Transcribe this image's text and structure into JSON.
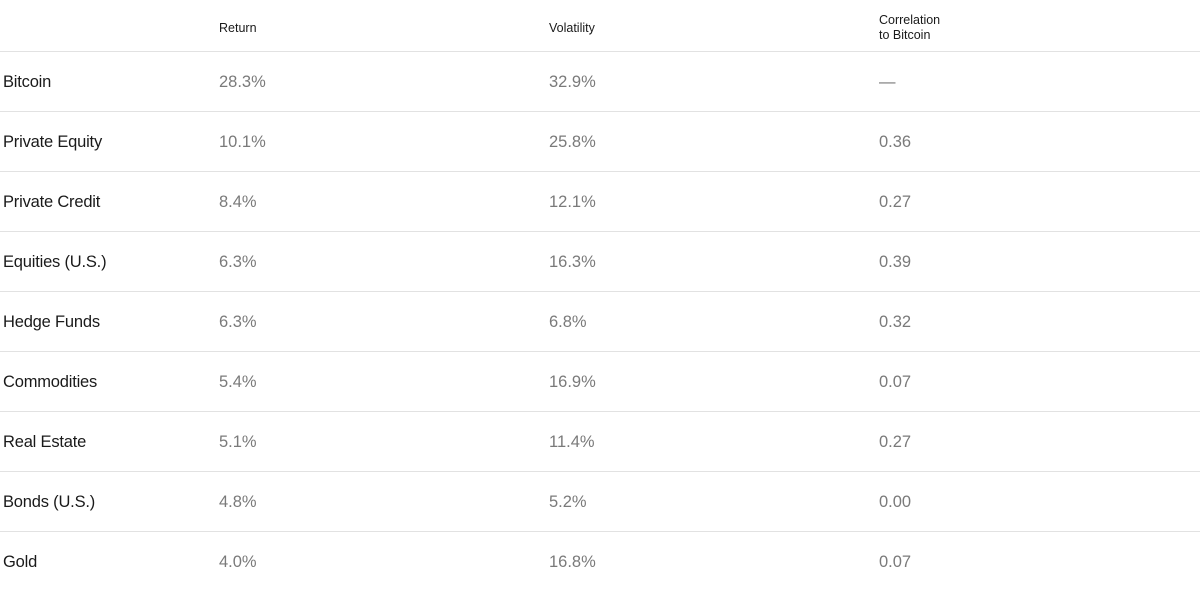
{
  "table": {
    "headers": {
      "return": "Return",
      "volatility": "Volatility",
      "correlation": "Correlation\nto Bitcoin"
    },
    "rows": [
      {
        "asset": "Bitcoin",
        "return": "28.3%",
        "volatility": "32.9%",
        "correlation": "—"
      },
      {
        "asset": "Private Equity",
        "return": "10.1%",
        "volatility": "25.8%",
        "correlation": "0.36"
      },
      {
        "asset": "Private Credit",
        "return": "8.4%",
        "volatility": "12.1%",
        "correlation": "0.27"
      },
      {
        "asset": "Equities (U.S.)",
        "return": "6.3%",
        "volatility": "16.3%",
        "correlation": "0.39"
      },
      {
        "asset": "Hedge Funds",
        "return": "6.3%",
        "volatility": "6.8%",
        "correlation": "0.32"
      },
      {
        "asset": "Commodities",
        "return": "5.4%",
        "volatility": "16.9%",
        "correlation": "0.07"
      },
      {
        "asset": "Real Estate",
        "return": "5.1%",
        "volatility": "11.4%",
        "correlation": "0.27"
      },
      {
        "asset": "Bonds (U.S.)",
        "return": "4.8%",
        "volatility": "5.2%",
        "correlation": "0.00"
      },
      {
        "asset": "Gold",
        "return": "4.0%",
        "volatility": "16.8%",
        "correlation": "0.07"
      }
    ]
  }
}
